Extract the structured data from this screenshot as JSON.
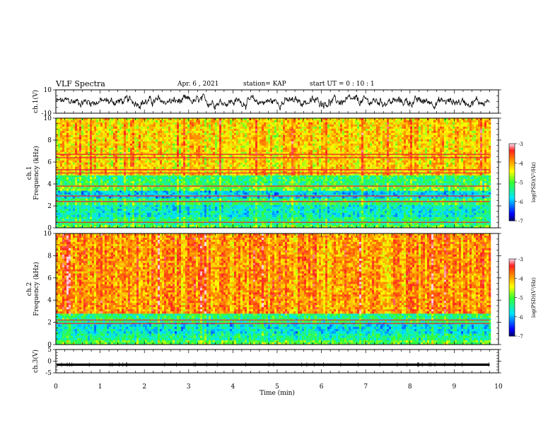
{
  "header": {
    "title": "VLF Spectra",
    "date": "Apr. 6 , 2021",
    "station": "station= KAP",
    "start_ut": "start UT = 0 : 10 : 1"
  },
  "chart_data": [
    {
      "type": "line",
      "panel": "ch1-waveform",
      "ylabel": "ch.1(V)",
      "yticks": [
        "10",
        "-10"
      ],
      "ylim": [
        -10,
        10
      ],
      "xlim": [
        0,
        10
      ],
      "data_extent_min": 9.8,
      "series": [
        {
          "values_note": "",
          "color": "#000000"
        }
      ]
    },
    {
      "type": "heatmap",
      "panel": "ch1-spectrogram",
      "ylabel": "ch.1\nFrequency (kHz)",
      "yticks": [
        "0",
        "2",
        "4",
        "6",
        "8",
        "10"
      ],
      "ylim": [
        0,
        10
      ],
      "xlim": [
        0,
        10
      ],
      "data_extent_min": 9.8,
      "colorbar": {
        "label": "log(PSD)(V²/Hz)",
        "ticks": [
          "-3",
          "-4",
          "-5",
          "-6",
          "-7"
        ],
        "range": [
          -7,
          -3
        ]
      },
      "bands_khz": [
        {
          "from": 0.0,
          "to": 0.3,
          "level": -5.0
        },
        {
          "from": 0.3,
          "to": 1.0,
          "level": -5.3
        },
        {
          "from": 1.0,
          "to": 2.1,
          "level": -5.6
        },
        {
          "from": 2.1,
          "to": 2.7,
          "level": -5.2
        },
        {
          "from": 2.7,
          "to": 3.4,
          "level": -5.8
        },
        {
          "from": 3.4,
          "to": 3.9,
          "level": -4.9
        },
        {
          "from": 3.9,
          "to": 4.8,
          "level": -5.2
        },
        {
          "from": 4.8,
          "to": 10.0,
          "level": -4.2
        }
      ],
      "lines_khz": [
        0.5,
        2.4,
        2.9,
        3.8,
        5.0,
        5.3,
        6.4,
        6.7
      ]
    },
    {
      "type": "heatmap",
      "panel": "ch2-spectrogram",
      "ylabel": "ch.2\nFrequency (kHz)",
      "yticks": [
        "0",
        "2",
        "4",
        "6",
        "8",
        "10"
      ],
      "ylim": [
        0,
        10
      ],
      "xlim": [
        0,
        10
      ],
      "data_extent_min": 9.8,
      "colorbar": {
        "label": "log(PSD)(V²/Hz)",
        "ticks": [
          "-3",
          "-4",
          "-5",
          "-6",
          "-7"
        ],
        "range": [
          -7,
          -3
        ]
      },
      "bands_khz": [
        {
          "from": 0.0,
          "to": 0.4,
          "level": -5.0
        },
        {
          "from": 0.4,
          "to": 1.0,
          "level": -5.4
        },
        {
          "from": 1.0,
          "to": 2.0,
          "level": -5.7
        },
        {
          "from": 2.0,
          "to": 2.8,
          "level": -5.3
        },
        {
          "from": 2.8,
          "to": 10.0,
          "level": -3.9
        }
      ],
      "lines_khz": [
        1.9,
        2.2
      ]
    },
    {
      "type": "line",
      "panel": "ch3-waveform",
      "ylabel": "ch.3(V)",
      "yticks": [
        "5",
        "0",
        "-5"
      ],
      "ylim": [
        -5,
        5
      ],
      "xlim": [
        0,
        10
      ],
      "data_extent_min": 9.8,
      "series": [
        {
          "values_note": "",
          "color": "#000000"
        }
      ]
    }
  ],
  "x_axis": {
    "label": "Time (min)",
    "ticks": [
      "0",
      "1",
      "2",
      "3",
      "4",
      "5",
      "6",
      "7",
      "8",
      "9",
      "10"
    ],
    "range": [
      0,
      10
    ]
  }
}
